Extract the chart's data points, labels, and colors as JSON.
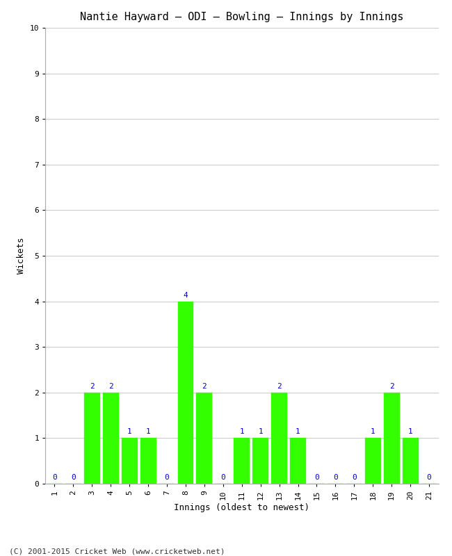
{
  "title": "Nantie Hayward – ODI – Bowling – Innings by Innings",
  "xlabel": "Innings (oldest to newest)",
  "ylabel": "Wickets",
  "copyright": "(C) 2001-2015 Cricket Web (www.cricketweb.net)",
  "innings": [
    1,
    2,
    3,
    4,
    5,
    6,
    7,
    8,
    9,
    10,
    11,
    12,
    13,
    14,
    15,
    16,
    17,
    18,
    19,
    20,
    21
  ],
  "wickets": [
    0,
    0,
    2,
    2,
    1,
    1,
    0,
    4,
    2,
    0,
    1,
    1,
    2,
    1,
    0,
    0,
    0,
    1,
    2,
    1,
    0
  ],
  "bar_color": "#33ff00",
  "bar_edge_color": "#33ff00",
  "label_color": "#0000cc",
  "ylim": [
    0,
    10
  ],
  "yticks": [
    0,
    1,
    2,
    3,
    4,
    5,
    6,
    7,
    8,
    9,
    10
  ],
  "background_color": "#ffffff",
  "plot_bg_color": "#ffffff",
  "title_fontsize": 11,
  "axis_label_fontsize": 9,
  "tick_label_fontsize": 8,
  "value_label_fontsize": 8,
  "copyright_fontsize": 8
}
